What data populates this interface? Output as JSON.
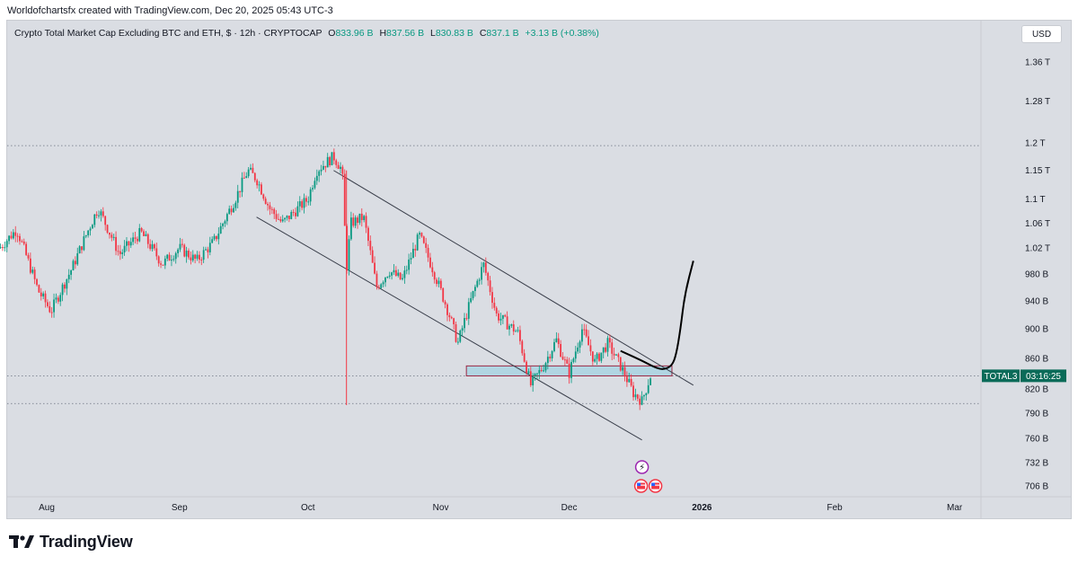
{
  "caption": "Worldofchartsfx created with TradingView.com, Dec 20, 2025 05:43 UTC-3",
  "legend": {
    "title": "Crypto Total Market Cap Excluding BTC and ETH, $ · 12h · CRYPTOCAP",
    "open_label": "O",
    "open": "833.96 B",
    "high_label": "H",
    "high": "837.56 B",
    "low_label": "L",
    "low": "830.83 B",
    "close_label": "C",
    "close": "837.1 B",
    "change": "+3.13 B (+0.38%)"
  },
  "currency_button": "USD",
  "price_tag": {
    "symbol": "TOTAL3",
    "countdown": "03:16:25"
  },
  "brand": "TradingView",
  "colors": {
    "up": "#089981",
    "down": "#f23645",
    "zone": "#a9d3e2",
    "tag": "#0b6b59",
    "background": "#dadde3"
  },
  "icons": [
    "lightning-event-icon",
    "us-flag-event-icon"
  ],
  "chart_data": {
    "type": "candlestick",
    "title": "Crypto Total Market Cap Excluding BTC and ETH",
    "timeframe": "12h",
    "y_scale": "log",
    "y_ticks": [
      "1.36 T",
      "1.28 T",
      "1.2 T",
      "1.15 T",
      "1.1 T",
      "1.06 T",
      "1.02 T",
      "980 B",
      "940 B",
      "900 B",
      "860 B",
      "820 B",
      "790 B",
      "760 B",
      "732 B",
      "706 B"
    ],
    "y_tick_values": [
      1360,
      1280,
      1200,
      1150,
      1100,
      1060,
      1020,
      980,
      940,
      900,
      860,
      820,
      790,
      760,
      732,
      706
    ],
    "x_ticks": [
      "Aug",
      "Sep",
      "Oct",
      "Nov",
      "Dec",
      "2026",
      "Feb",
      "Mar"
    ],
    "x_tick_dates": [
      "2025-08-01",
      "2025-09-01",
      "2025-10-01",
      "2025-11-01",
      "2025-12-01",
      "2026-01-01",
      "2026-02-01",
      "2026-03-01"
    ],
    "last_price": 837.1,
    "series_path": [
      [
        "2025-07-21",
        1020
      ],
      [
        "2025-07-25",
        1050
      ],
      [
        "2025-07-30",
        955
      ],
      [
        "2025-08-02",
        925
      ],
      [
        "2025-08-07",
        990
      ],
      [
        "2025-08-13",
        1085
      ],
      [
        "2025-08-18",
        1010
      ],
      [
        "2025-08-23",
        1045
      ],
      [
        "2025-08-28",
        995
      ],
      [
        "2025-09-01",
        1020
      ],
      [
        "2025-09-05",
        1000
      ],
      [
        "2025-09-09",
        1030
      ],
      [
        "2025-09-14",
        1100
      ],
      [
        "2025-09-17",
        1150
      ],
      [
        "2025-09-19",
        1135
      ],
      [
        "2025-09-22",
        1085
      ],
      [
        "2025-09-25",
        1060
      ],
      [
        "2025-09-28",
        1080
      ],
      [
        "2025-10-01",
        1100
      ],
      [
        "2025-10-03",
        1150
      ],
      [
        "2025-10-07",
        1175
      ],
      [
        "2025-10-09",
        1150
      ],
      [
        "2025-10-10",
        985
      ],
      [
        "2025-10-11",
        1060
      ],
      [
        "2025-10-14",
        1070
      ],
      [
        "2025-10-17",
        960
      ],
      [
        "2025-10-20",
        985
      ],
      [
        "2025-10-23",
        970
      ],
      [
        "2025-10-27",
        1040
      ],
      [
        "2025-10-30",
        990
      ],
      [
        "2025-11-03",
        920
      ],
      [
        "2025-11-05",
        880
      ],
      [
        "2025-11-08",
        940
      ],
      [
        "2025-11-11",
        995
      ],
      [
        "2025-11-14",
        920
      ],
      [
        "2025-11-17",
        905
      ],
      [
        "2025-11-19",
        895
      ],
      [
        "2025-11-22",
        825
      ],
      [
        "2025-11-25",
        850
      ],
      [
        "2025-11-28",
        885
      ],
      [
        "2025-12-01",
        840
      ],
      [
        "2025-12-04",
        900
      ],
      [
        "2025-12-07",
        855
      ],
      [
        "2025-12-10",
        880
      ],
      [
        "2025-12-13",
        850
      ],
      [
        "2025-12-16",
        815
      ],
      [
        "2025-12-18",
        805
      ],
      [
        "2025-12-20",
        837
      ]
    ],
    "wick_low": {
      "date": "2025-10-10",
      "value": 800
    },
    "channel": {
      "upper": [
        [
          "2025-10-07",
          1150
        ],
        [
          "2025-12-30",
          825
        ]
      ],
      "lower": [
        [
          "2025-09-19",
          1070
        ],
        [
          "2025-12-18",
          758
        ]
      ]
    },
    "zone": {
      "from": "2025-11-07",
      "to": "2025-12-25",
      "top": 850,
      "bottom": 837
    },
    "dotted_levels": [
      1195,
      837,
      802
    ],
    "projection": [
      [
        "2025-12-13",
        870
      ],
      [
        "2025-12-18",
        857
      ],
      [
        "2025-12-21",
        848
      ],
      [
        "2025-12-23",
        845
      ],
      [
        "2025-12-25",
        850
      ],
      [
        "2025-12-26",
        865
      ],
      [
        "2025-12-27",
        900
      ],
      [
        "2025-12-28",
        950
      ],
      [
        "2025-12-30",
        1000
      ]
    ]
  }
}
